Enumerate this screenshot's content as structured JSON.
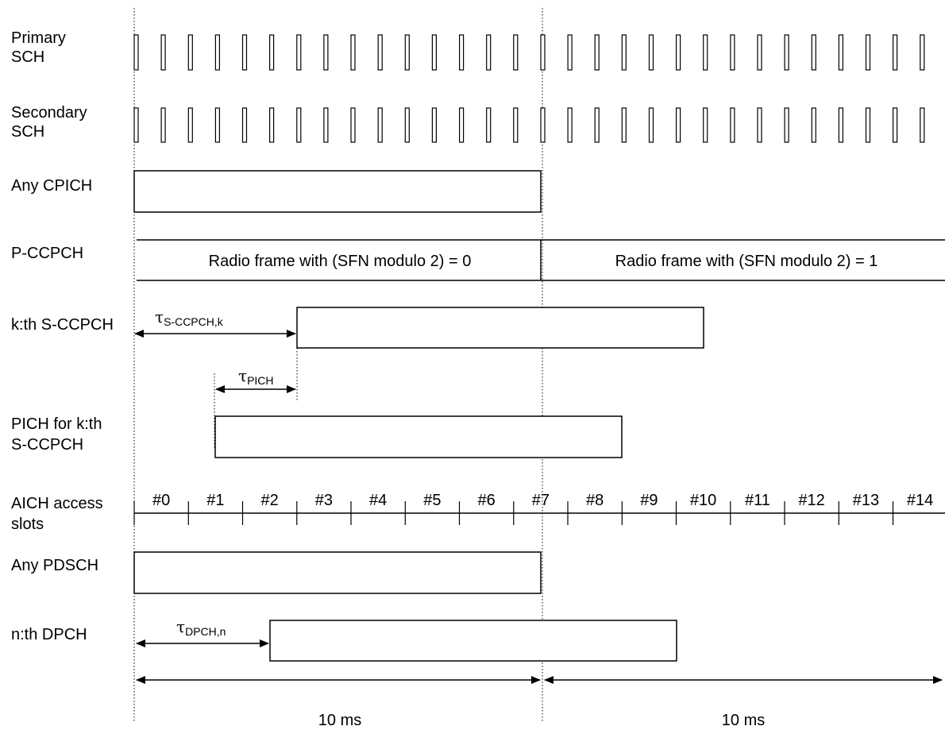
{
  "channels": {
    "primary_sch": [
      "Primary",
      "SCH"
    ],
    "secondary_sch": [
      "Secondary",
      "SCH"
    ],
    "any_cpich": "Any CPICH",
    "p_ccpch": "P-CCPCH",
    "kth_sccpch": "k:th S-CCPCH",
    "pich": [
      "PICH for k:th",
      "S-CCPCH"
    ],
    "aich": [
      "AICH access",
      "slots"
    ],
    "any_pdsch": "Any PDSCH",
    "nth_dpch": "n:th DPCH"
  },
  "frames": {
    "frame0": "Radio frame with (SFN modulo 2) = 0",
    "frame1": "Radio frame with (SFN modulo 2) = 1"
  },
  "offsets": {
    "tau_symbol": "τ",
    "sccpch_sub": "S-CCPCH,k",
    "pich_sub": "PICH",
    "dpch_sub": "DPCH,n"
  },
  "aich_slots": [
    "#0",
    "#1",
    "#2",
    "#3",
    "#4",
    "#5",
    "#6",
    "#7",
    "#8",
    "#9",
    "#10",
    "#11",
    "#12",
    "#13",
    "#14"
  ],
  "durations": {
    "frame0": "10 ms",
    "frame1": "10 ms"
  }
}
